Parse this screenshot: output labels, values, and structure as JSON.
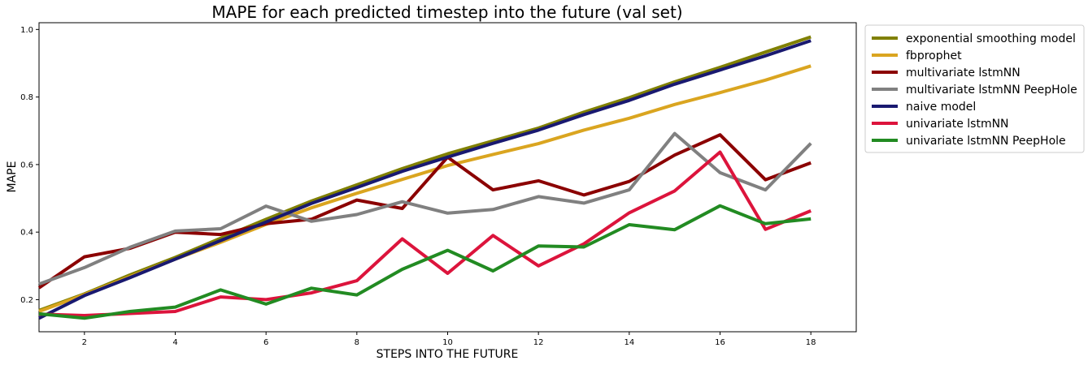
{
  "chart_data": {
    "type": "line",
    "title": "MAPE for each predicted timestep into the future (val set)",
    "xlabel": "STEPS INTO THE FUTURE",
    "ylabel": "MAPE",
    "xlim": [
      1,
      19
    ],
    "ylim": [
      0.105,
      1.02
    ],
    "x_ticks": [
      2,
      4,
      6,
      8,
      10,
      12,
      14,
      16,
      18
    ],
    "y_ticks": [
      0.2,
      0.4,
      0.6,
      0.8,
      1.0
    ],
    "y_tick_labels": [
      "0.2",
      "0.4",
      "0.6",
      "0.8",
      "1.0"
    ],
    "grid": false,
    "legend_position": "outside-top-right",
    "x": [
      1,
      2,
      3,
      4,
      5,
      6,
      7,
      8,
      9,
      10,
      11,
      12,
      13,
      14,
      15,
      16,
      17,
      18
    ],
    "series": [
      {
        "name": "exponential smoothing model",
        "color": "#808000",
        "values": [
          0.168,
          0.217,
          0.273,
          0.325,
          0.382,
          0.438,
          0.492,
          0.54,
          0.588,
          0.632,
          0.67,
          0.708,
          0.755,
          0.798,
          0.845,
          0.888,
          0.933,
          0.978
        ]
      },
      {
        "name": "fbprophet",
        "color": "#DAA520",
        "values": [
          0.165,
          0.215,
          0.268,
          0.32,
          0.37,
          0.423,
          0.472,
          0.515,
          0.556,
          0.597,
          0.63,
          0.662,
          0.702,
          0.737,
          0.778,
          0.813,
          0.85,
          0.892
        ]
      },
      {
        "name": "multivariate lstmNN",
        "color": "#8B0000",
        "values": [
          0.235,
          0.327,
          0.352,
          0.4,
          0.393,
          0.425,
          0.438,
          0.495,
          0.47,
          0.622,
          0.525,
          0.552,
          0.51,
          0.55,
          0.628,
          0.688,
          0.555,
          0.605
        ]
      },
      {
        "name": "multivariate lstmNN PeepHole",
        "color": "#808080",
        "values": [
          0.246,
          0.295,
          0.355,
          0.403,
          0.41,
          0.477,
          0.432,
          0.452,
          0.49,
          0.456,
          0.467,
          0.505,
          0.486,
          0.525,
          0.692,
          0.576,
          0.525,
          0.663
        ]
      },
      {
        "name": "naive model",
        "color": "#191970",
        "values": [
          0.145,
          0.212,
          0.265,
          0.32,
          0.375,
          0.43,
          0.485,
          0.532,
          0.58,
          0.622,
          0.663,
          0.702,
          0.748,
          0.79,
          0.838,
          0.88,
          0.922,
          0.967
        ]
      },
      {
        "name": "univariate lstmNN",
        "color": "#DC143C",
        "values": [
          0.157,
          0.153,
          0.159,
          0.165,
          0.208,
          0.2,
          0.22,
          0.256,
          0.38,
          0.278,
          0.39,
          0.3,
          0.365,
          0.457,
          0.522,
          0.637,
          0.408,
          0.463
        ]
      },
      {
        "name": "univariate lstmNN PeepHole",
        "color": "#228B22",
        "values": [
          0.158,
          0.145,
          0.165,
          0.178,
          0.229,
          0.187,
          0.234,
          0.214,
          0.29,
          0.346,
          0.285,
          0.359,
          0.356,
          0.422,
          0.407,
          0.478,
          0.425,
          0.439
        ]
      }
    ]
  }
}
